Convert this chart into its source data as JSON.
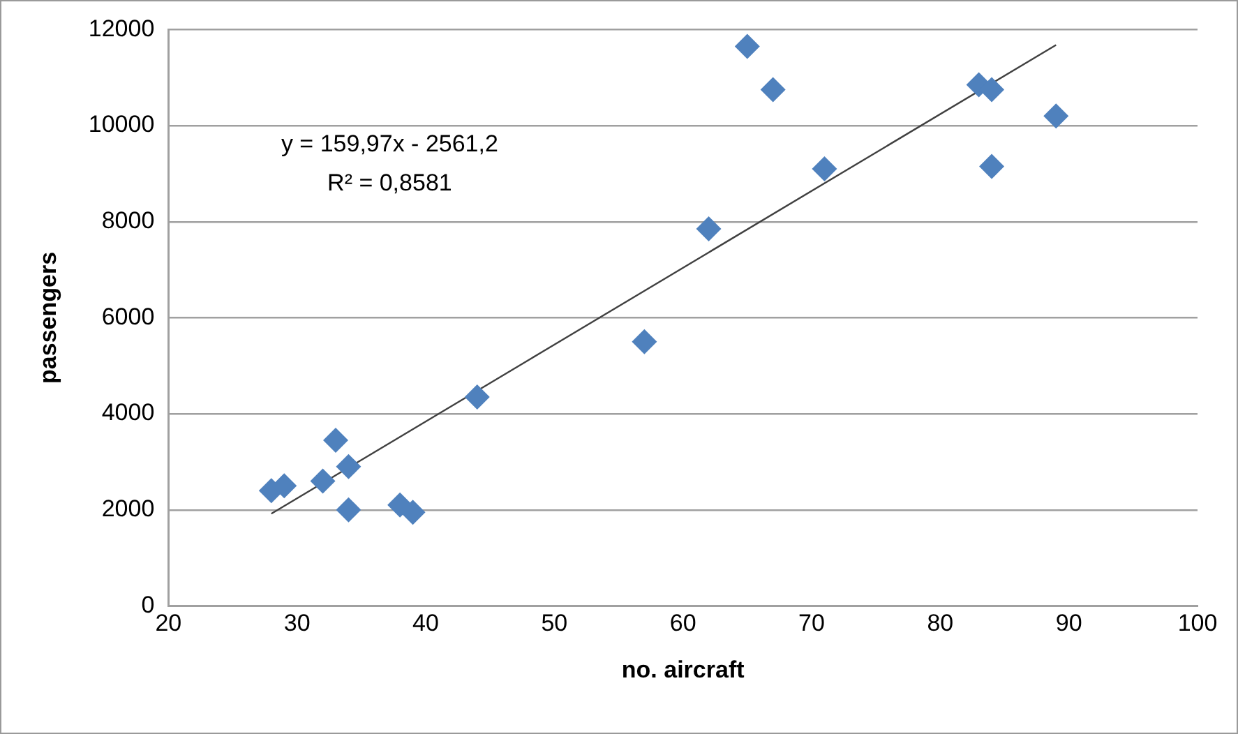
{
  "chart_data": {
    "type": "scatter",
    "xlabel": "no. aircraft",
    "ylabel": "passengers",
    "annotations": [
      "y = 159,97x - 2561,2",
      "R² = 0,8581"
    ],
    "xlim": [
      20,
      100
    ],
    "xticks": [
      20,
      30,
      40,
      50,
      60,
      70,
      80,
      90,
      100
    ],
    "ylim": [
      0,
      12000
    ],
    "yticks": [
      0,
      2000,
      4000,
      6000,
      8000,
      10000,
      12000
    ],
    "grid": "y",
    "legend": false,
    "marker": "diamond",
    "series": [
      {
        "color": "#4f81bd",
        "x": [
          28,
          29,
          32,
          33,
          34,
          34,
          38,
          39,
          44,
          57,
          62,
          65,
          67,
          71,
          83,
          84,
          84,
          89
        ],
        "values": [
          2400,
          2500,
          2600,
          3450,
          2900,
          2000,
          2100,
          1950,
          4350,
          5500,
          7850,
          11650,
          10750,
          9100,
          10850,
          10750,
          9150,
          10200
        ]
      },
      {
        "type": "line",
        "color": "#404040",
        "x": [
          28,
          89
        ],
        "values": [
          1920,
          11680
        ],
        "marker": "none",
        "line_style": "solid"
      }
    ]
  }
}
